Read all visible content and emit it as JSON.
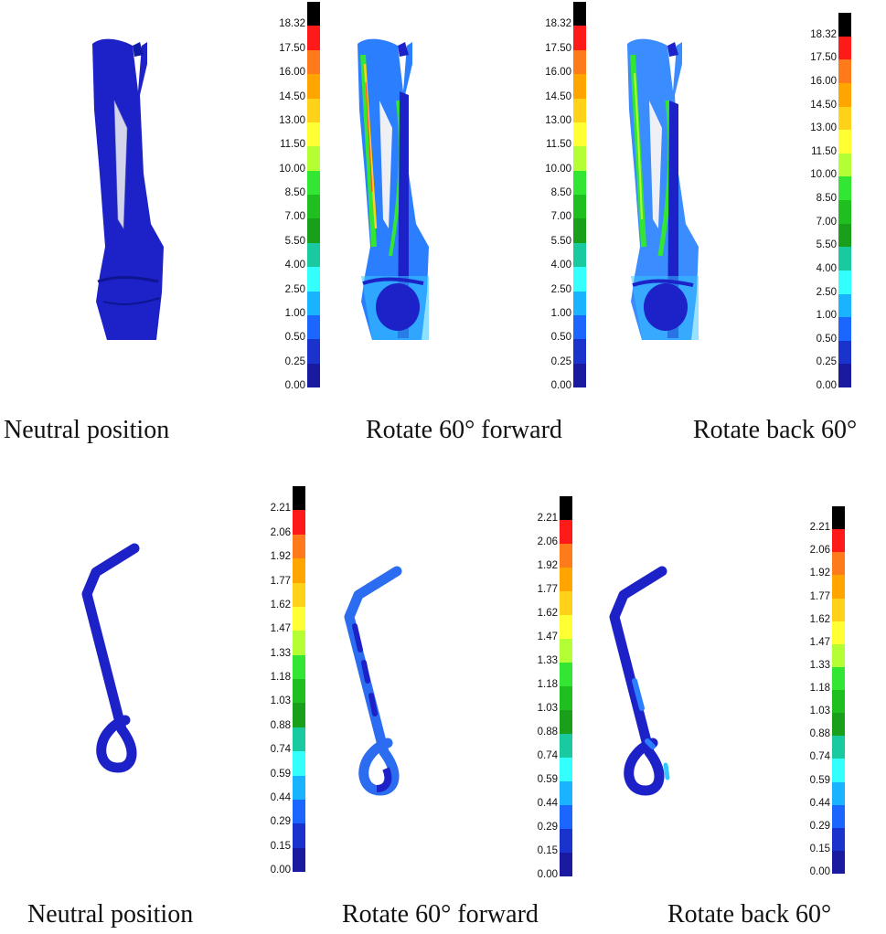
{
  "rows": [
    {
      "name": "bone-model",
      "panels": [
        {
          "caption": "Neutral position"
        },
        {
          "caption": "Rotate 60° forward"
        },
        {
          "caption": "Rotate back 60°"
        }
      ],
      "scale_ticks": [
        "18.32",
        "17.50",
        "16.00",
        "14.50",
        "13.00",
        "11.50",
        "10.00",
        "8.50",
        "7.00",
        "5.50",
        "4.00",
        "2.50",
        "1.00",
        "0.50",
        "0.25",
        "0.00"
      ]
    },
    {
      "name": "hook-model",
      "panels": [
        {
          "caption": "Neutral position"
        },
        {
          "caption": "Rotate 60° forward"
        },
        {
          "caption": "Rotate back 60°"
        }
      ],
      "scale_ticks": [
        "2.21",
        "2.06",
        "1.92",
        "1.77",
        "1.62",
        "1.47",
        "1.33",
        "1.18",
        "1.03",
        "0.88",
        "0.74",
        "0.59",
        "0.44",
        "0.29",
        "0.15",
        "0.00"
      ]
    }
  ],
  "colormap": [
    "#000000",
    "#ff1a1a",
    "#ff7a1a",
    "#ffa500",
    "#ffd21a",
    "#ffff33",
    "#b4ff33",
    "#33e633",
    "#1fbf1f",
    "#1a9f1a",
    "#19c9a0",
    "#33ffff",
    "#1ab3ff",
    "#1a66ff",
    "#1a33cc",
    "#1a1aa0"
  ]
}
